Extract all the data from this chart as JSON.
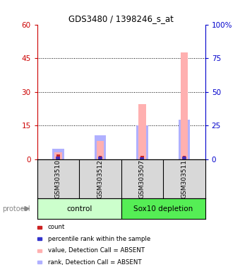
{
  "title": "GDS3480 / 1398246_s_at",
  "samples": [
    "GSM303510",
    "GSM303512",
    "GSM303507",
    "GSM303511"
  ],
  "group_labels": [
    "control",
    "Sox10 depletion"
  ],
  "group_colors_light": [
    "#ccffcc",
    "#55ee55"
  ],
  "value_bars": [
    3.0,
    8.0,
    24.5,
    47.5
  ],
  "rank_bars_pct": [
    7.5,
    17.5,
    25.0,
    29.5
  ],
  "count_val": [
    2.0,
    1.5,
    1.5,
    1.5
  ],
  "rank_count_val": [
    1.2,
    1.2,
    0.8,
    1.2
  ],
  "ylim_left": [
    0,
    60
  ],
  "ylim_right": [
    0,
    100
  ],
  "yticks_left": [
    0,
    15,
    30,
    45,
    60
  ],
  "yticks_right": [
    0,
    25,
    50,
    75,
    100
  ],
  "ytick_labels_left": [
    "0",
    "15",
    "30",
    "45",
    "60"
  ],
  "ytick_labels_right": [
    "0",
    "25",
    "50",
    "75",
    "100%"
  ],
  "left_color": "#cc0000",
  "right_color": "#0000cc",
  "value_color": "#ffb0b0",
  "rank_color": "#b0b0ff",
  "count_color": "#cc2222",
  "rank_count_color": "#3333cc",
  "bg_color": "#d8d8d8",
  "legend_items": [
    {
      "label": "count",
      "color": "#cc2222"
    },
    {
      "label": "percentile rank within the sample",
      "color": "#3333cc"
    },
    {
      "label": "value, Detection Call = ABSENT",
      "color": "#ffb0b0"
    },
    {
      "label": "rank, Detection Call = ABSENT",
      "color": "#b0b0ff"
    }
  ],
  "protocol_label": "protocol"
}
